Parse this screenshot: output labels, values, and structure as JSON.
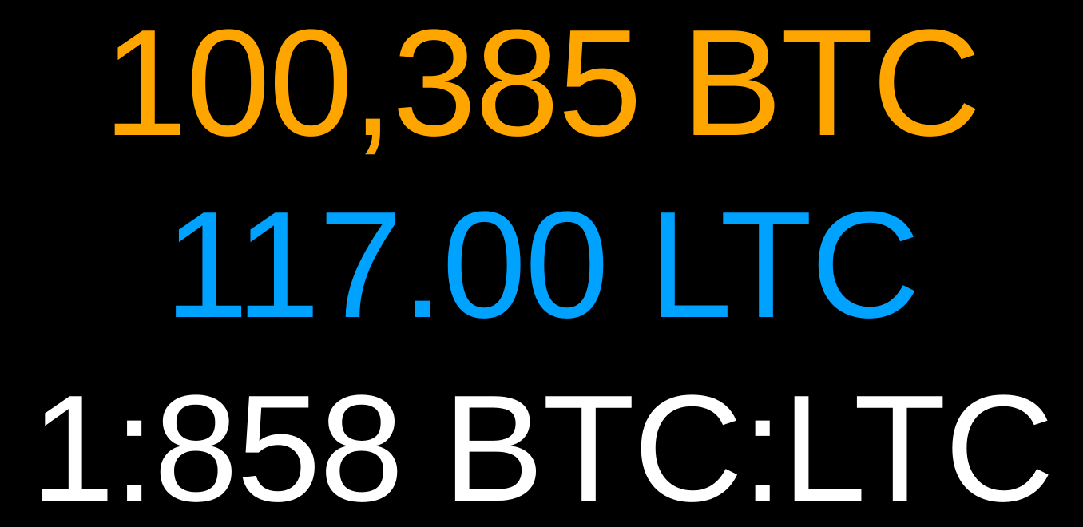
{
  "ticker": {
    "btc_amount": "100,385 BTC",
    "ltc_amount": "117.00 LTC",
    "ratio": "1:858 BTC:LTC"
  },
  "colors": {
    "background": "#000000",
    "btc": "#FFA500",
    "ltc": "#00A2FF",
    "ratio": "#FFFFFF"
  }
}
